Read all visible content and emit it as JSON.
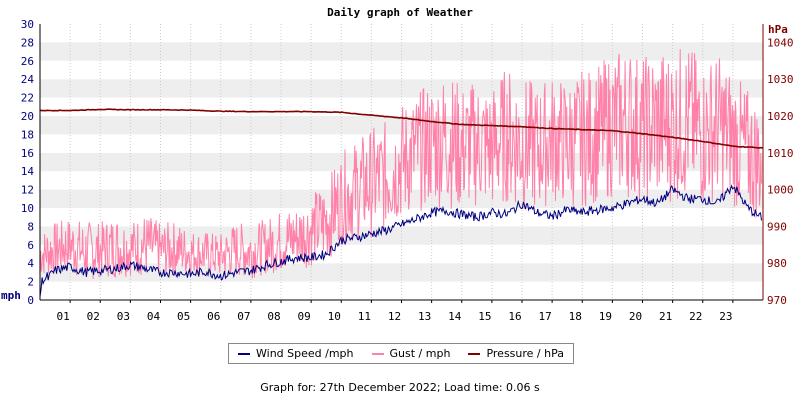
{
  "chart_data": {
    "type": "line",
    "title": "Daily graph of Weather",
    "y_left": {
      "unit": "mph",
      "min": 0,
      "max": 30,
      "ticks": [
        "0",
        "2",
        "4",
        "6",
        "8",
        "10",
        "12",
        "14",
        "16",
        "18",
        "20",
        "22",
        "24",
        "26",
        "28",
        "30"
      ]
    },
    "y_right": {
      "unit": "hPa",
      "min": 970,
      "max": 1045,
      "ticks": [
        "970",
        "980",
        "990",
        "1000",
        "1010",
        "1020",
        "1030",
        "1040"
      ]
    },
    "x_ticks": [
      "01",
      "02",
      "03",
      "04",
      "05",
      "06",
      "07",
      "08",
      "09",
      "10",
      "11",
      "12",
      "13",
      "14",
      "15",
      "16",
      "17",
      "18",
      "19",
      "20",
      "21",
      "22",
      "23"
    ],
    "x_range": [
      0,
      24
    ],
    "grid": "horizontal alternating bands",
    "series": [
      {
        "name": "Wind Speed /mph",
        "color": "#000080",
        "x": [
          0,
          0.1,
          0.2,
          0.5,
          1,
          1.5,
          2,
          2.5,
          3,
          3.3,
          3.6,
          4,
          4.5,
          5,
          5.5,
          6,
          6.5,
          7,
          7.5,
          8,
          8.5,
          9,
          9.5,
          10,
          10.5,
          11,
          11.5,
          12,
          12.5,
          13,
          13.5,
          14,
          14.5,
          15,
          15.5,
          16,
          16.5,
          17,
          17.5,
          18,
          18.5,
          19,
          19.5,
          20,
          20.5,
          21,
          21.5,
          22,
          22.5,
          23,
          23.5,
          23.9
        ],
        "values": [
          0.5,
          2.5,
          2.2,
          3.2,
          3.6,
          3,
          3.2,
          3.4,
          3.8,
          3.6,
          3.3,
          3.0,
          3.0,
          2.8,
          3.1,
          2.6,
          3.0,
          3.2,
          3.8,
          4.2,
          4.6,
          4.6,
          5.0,
          6.5,
          6.8,
          7.2,
          7.6,
          8.2,
          8.8,
          9.5,
          9.7,
          9.3,
          9.0,
          9.5,
          9.3,
          10.5,
          9.5,
          9.1,
          9.8,
          9.5,
          9.8,
          10.0,
          10.5,
          11.0,
          10.5,
          12.0,
          11.0,
          11.0,
          10.5,
          12.5,
          10.0,
          9.0
        ]
      },
      {
        "name": "Gust / mph",
        "color": "#ff80a8",
        "x": [
          0,
          0.5,
          1,
          1.5,
          2,
          2.5,
          3,
          3.5,
          4,
          4.5,
          5,
          5.5,
          6,
          6.5,
          7,
          7.5,
          8,
          8.5,
          9,
          9.5,
          10,
          10.5,
          11,
          11.5,
          12,
          12.5,
          13,
          13.5,
          14,
          14.5,
          15,
          15.5,
          16,
          16.5,
          17,
          17.5,
          18,
          18.5,
          19,
          19.5,
          20,
          20.5,
          21,
          21.5,
          22,
          22.5,
          23,
          23.5,
          23.9
        ],
        "values": [
          5.0,
          5.5,
          6.0,
          5.2,
          5.5,
          5.8,
          5.6,
          6.0,
          5.4,
          5.6,
          5.2,
          5.0,
          4.8,
          5.5,
          5.3,
          5.8,
          6.4,
          6.8,
          7.6,
          8.5,
          11.0,
          12.0,
          12.8,
          13.5,
          15.0,
          16.0,
          17.0,
          17.5,
          16.5,
          17.0,
          16.5,
          18.0,
          17.0,
          16.5,
          17.5,
          17.0,
          17.5,
          18.0,
          19.0,
          19.5,
          18.5,
          19.0,
          19.0,
          19.5,
          18.0,
          19.0,
          17.5,
          16.0,
          15.0
        ],
        "ranges": [
          2.5,
          3.0,
          3.0,
          3.5,
          3.0,
          3.5,
          3.0,
          3.5,
          3.0,
          3.0,
          2.5,
          2.5,
          2.5,
          3.0,
          3.0,
          3.0,
          3.5,
          3.5,
          4.0,
          4.5,
          5.0,
          5.5,
          6.0,
          6.0,
          6.5,
          6.5,
          7.0,
          7.5,
          7.0,
          7.0,
          7.0,
          7.5,
          7.5,
          7.0,
          7.0,
          7.0,
          7.5,
          7.5,
          8.0,
          8.5,
          8.0,
          8.5,
          8.5,
          8.5,
          8.0,
          8.0,
          7.5,
          7.0,
          6.5
        ]
      },
      {
        "name": "Pressure / hPa",
        "color": "#800000",
        "axis": "right",
        "x": [
          0,
          1,
          2,
          3,
          4,
          5,
          6,
          7,
          8,
          9,
          10,
          11,
          12,
          13,
          14,
          15,
          16,
          17,
          18,
          19,
          20,
          21,
          22,
          23,
          24
        ],
        "values": [
          1021.5,
          1021.5,
          1021.8,
          1021.7,
          1021.7,
          1021.6,
          1021.3,
          1021.2,
          1021.2,
          1021.2,
          1021.0,
          1020.2,
          1019.5,
          1018.5,
          1017.7,
          1017.4,
          1017.1,
          1016.6,
          1016.3,
          1016.0,
          1015.2,
          1014.2,
          1013.1,
          1011.8,
          1011.3
        ]
      }
    ]
  },
  "legend": [
    {
      "label": "Wind Speed /mph",
      "color": "#000080"
    },
    {
      "label": "Gust / mph",
      "color": "#ff80a8"
    },
    {
      "label": "Pressure / hPa",
      "color": "#800000"
    }
  ],
  "footer": "Graph for: 27th December 2022; Load time: 0.06 s"
}
